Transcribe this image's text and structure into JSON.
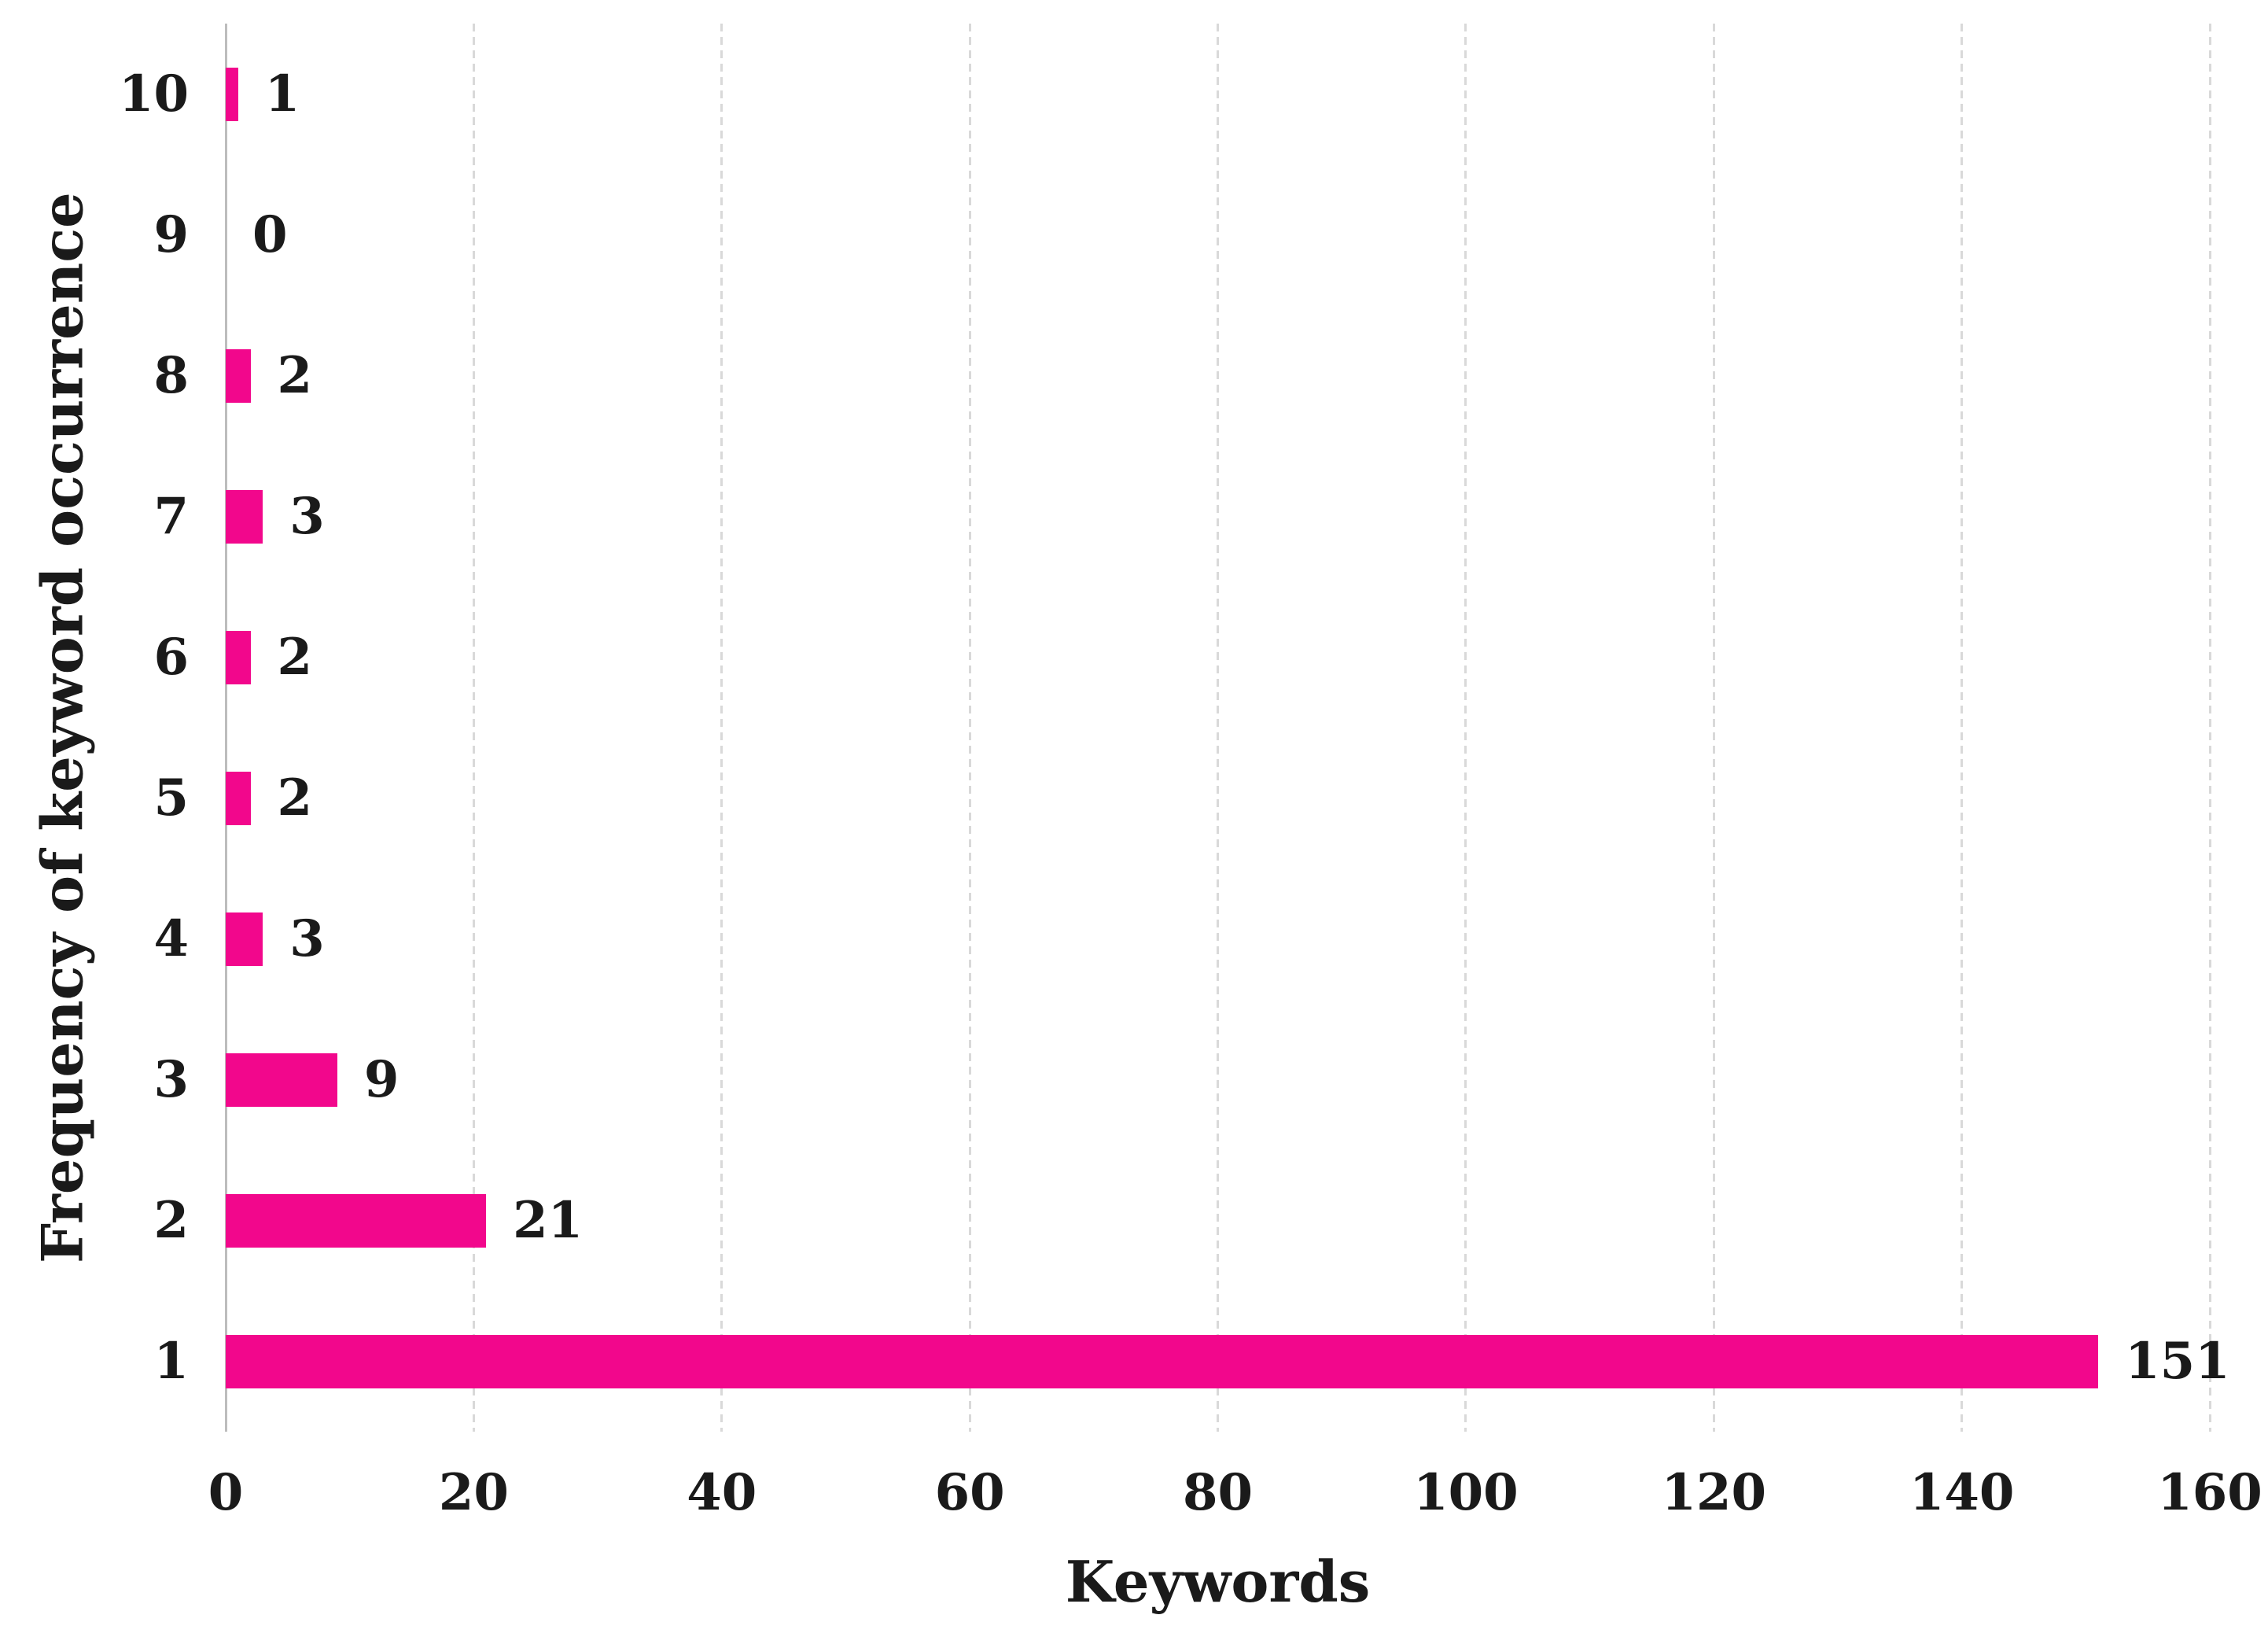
{
  "chart_data": {
    "type": "bar",
    "orientation": "horizontal",
    "title": "",
    "xlabel": "Keywords",
    "ylabel": "Frequency of keyword occurrence",
    "categories": [
      "10",
      "9",
      "8",
      "7",
      "6",
      "5",
      "4",
      "3",
      "2",
      "1"
    ],
    "values": [
      1,
      0,
      2,
      3,
      2,
      2,
      3,
      9,
      21,
      151
    ],
    "data_labels": [
      "1",
      "0",
      "2",
      "3",
      "2",
      "2",
      "3",
      "9",
      "21",
      "151"
    ],
    "xlim": [
      0,
      160
    ],
    "xticks": [
      0,
      20,
      40,
      60,
      80,
      100,
      120,
      140,
      160
    ],
    "grid": "vertical-dashed",
    "legend": "none",
    "bar_color": "#f2078c",
    "grid_color": "#d9d9d9",
    "axis_line_color": "#bdbdbd",
    "text_color": "#1a1a1a"
  }
}
